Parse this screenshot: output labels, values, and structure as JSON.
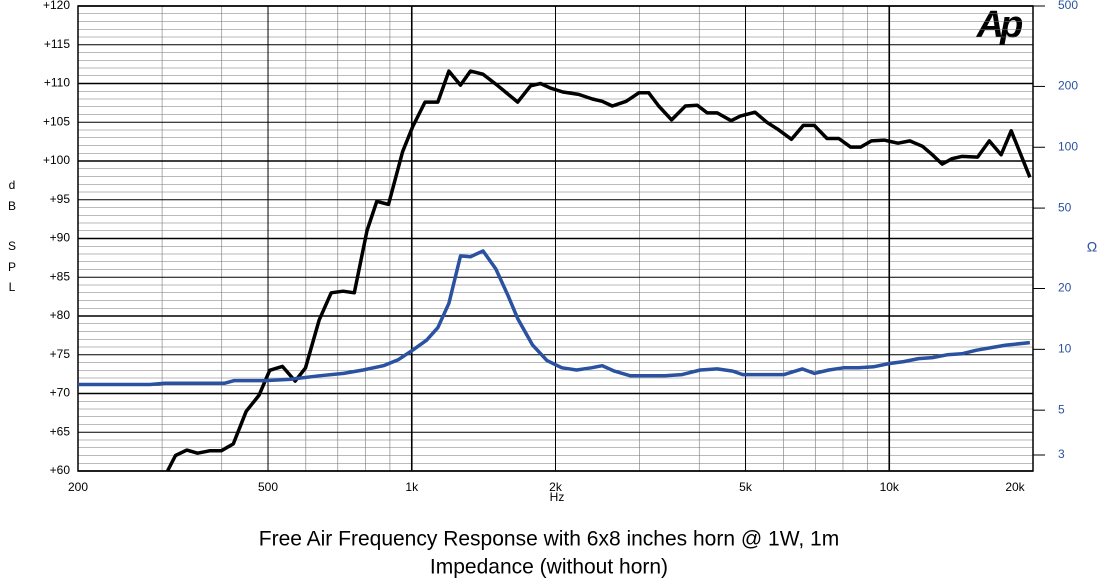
{
  "chart_data": {
    "type": "line",
    "title": "Free Air Frequency Response with 6x8 inches horn @ 1W, 1m",
    "subtitle": "Impedance (without horn)",
    "logo": "Ap",
    "xlabel": "Hz",
    "ylabel": [
      "d",
      "B",
      "S",
      "P",
      "L"
    ],
    "y2label": "Ω",
    "xscale": "log",
    "y2scale": "log",
    "grid": true,
    "xlim": [
      200,
      20000
    ],
    "xticks": [
      200,
      500,
      {
        "value": 1000,
        "label": "1k"
      },
      {
        "value": 2000,
        "label": "2k"
      },
      {
        "value": 5000,
        "label": "5k"
      },
      {
        "value": 10000,
        "label": "10k"
      },
      {
        "value": 20000,
        "label": "20k"
      }
    ],
    "xminorticks": [
      300,
      400,
      600,
      700,
      800,
      900,
      3000,
      4000,
      6000,
      7000,
      8000,
      9000
    ],
    "ylim": [
      60,
      120
    ],
    "yticks": [
      {
        "value": 60,
        "label": "+60"
      },
      {
        "value": 65,
        "label": "+65"
      },
      {
        "value": 70,
        "label": "+70"
      },
      {
        "value": 75,
        "label": "+75"
      },
      {
        "value": 80,
        "label": "+80"
      },
      {
        "value": 85,
        "label": "+85"
      },
      {
        "value": 90,
        "label": "+90"
      },
      {
        "value": 95,
        "label": "+95"
      },
      {
        "value": 100,
        "label": "+100"
      },
      {
        "value": 105,
        "label": "+105"
      },
      {
        "value": 110,
        "label": "+110"
      },
      {
        "value": 115,
        "label": "+115"
      },
      {
        "value": 120,
        "label": "+120"
      }
    ],
    "yminorticks": [
      61,
      62,
      63,
      64,
      66,
      67,
      68,
      69,
      71,
      72,
      73,
      74,
      76,
      77,
      78,
      79,
      81,
      82,
      83,
      84,
      86,
      87,
      88,
      89,
      91,
      92,
      93,
      94,
      96,
      97,
      98,
      99,
      101,
      102,
      103,
      104,
      106,
      107,
      108,
      109,
      111,
      112,
      113,
      114,
      116,
      117,
      118,
      119
    ],
    "y2lim": [
      2.5,
      500
    ],
    "y2ticks": [
      3,
      5,
      10,
      20,
      50,
      100,
      200,
      500
    ],
    "series": [
      {
        "color": "#000000",
        "x": [
          308,
          320,
          338,
          356,
          377,
          399,
          423,
          450,
          479,
          504,
          536,
          570,
          599,
          640,
          678,
          718,
          758,
          806,
          845,
          894,
          957,
          1004,
          1066,
          1134,
          1196,
          1265,
          1327,
          1410,
          1515,
          1667,
          1774,
          1860,
          1951,
          2073,
          2236,
          2390,
          2505,
          2630,
          2812,
          2990,
          3135,
          3290,
          3500,
          3742,
          3963,
          4157,
          4362,
          4665,
          4875,
          5235,
          5542,
          5840,
          6240,
          6608,
          6965,
          7405,
          7840,
          8300,
          8710,
          9177,
          9760,
          10430,
          11040,
          11740,
          12310,
          12910,
          13530,
          14190,
          15310,
          16200,
          17150,
          18000,
          19700
        ],
        "values": [
          60,
          62,
          62.7,
          62.3,
          62.6,
          62.6,
          63.5,
          67.7,
          69.8,
          73,
          73.5,
          71.6,
          73.3,
          79.5,
          83,
          83.2,
          83,
          91,
          94.8,
          94.4,
          101.2,
          104.4,
          107.6,
          107.6,
          111.6,
          109.8,
          111.6,
          111.2,
          109.7,
          107.6,
          109.7,
          110,
          109.4,
          108.9,
          108.6,
          108,
          107.7,
          107.1,
          107.7,
          108.8,
          108.8,
          107.1,
          105.3,
          107.1,
          107.2,
          106.2,
          106.2,
          105.2,
          105.8,
          106.3,
          105,
          104.1,
          102.8,
          104.6,
          104.6,
          102.9,
          102.9,
          101.8,
          101.8,
          102.6,
          102.7,
          102.3,
          102.6,
          101.9,
          100.8,
          99.6,
          100.3,
          100.6,
          100.5,
          102.6,
          100.8,
          103.9,
          97.9
        ]
      },
      {
        "color": "#2a52a0",
        "axis": "y2",
        "x": [
          200,
          283,
          304,
          406,
          425,
          492,
          554,
          640,
          720,
          791,
          872,
          938,
          1004,
          1074,
          1134,
          1196,
          1265,
          1327,
          1410,
          1500,
          1590,
          1667,
          1791,
          1920,
          2063,
          2214,
          2378,
          2505,
          2656,
          2870,
          3120,
          3390,
          3680,
          4020,
          4362,
          4700,
          4935,
          5352,
          6020,
          6575,
          6965,
          7470,
          8020,
          8630,
          9270,
          9980,
          10720,
          11520,
          12310,
          13220,
          14190,
          15230,
          16360,
          17560,
          19700
        ],
        "values": [
          6.7,
          6.7,
          6.8,
          6.8,
          7.0,
          7.0,
          7.1,
          7.4,
          7.6,
          7.9,
          8.3,
          8.9,
          9.9,
          11.1,
          12.8,
          16.9,
          29,
          28.7,
          30.7,
          25,
          18.5,
          14.2,
          10.5,
          8.8,
          8.1,
          7.9,
          8.1,
          8.3,
          7.8,
          7.4,
          7.4,
          7.4,
          7.5,
          7.9,
          8.0,
          7.8,
          7.5,
          7.5,
          7.5,
          8.0,
          7.6,
          7.9,
          8.1,
          8.1,
          8.2,
          8.5,
          8.7,
          9.0,
          9.1,
          9.4,
          9.5,
          9.9,
          10.2,
          10.5,
          10.8
        ]
      }
    ]
  }
}
